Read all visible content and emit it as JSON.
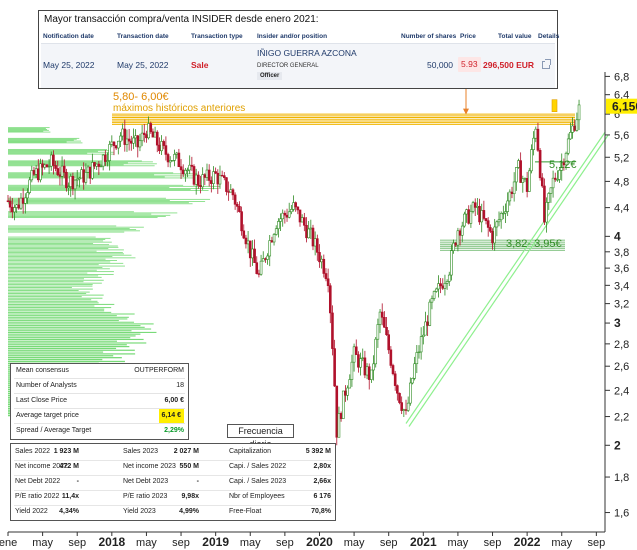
{
  "insider": {
    "title": "Mayor transacción compra/venta INSIDER desde enero 2021:",
    "headers": [
      "Notification date",
      "Transaction date",
      "Transaction type",
      "Insider and/or position",
      "Number of shares",
      "Price",
      "Total value",
      "Details"
    ],
    "notification_date": "May 25, 2022",
    "transaction_date": "May 25, 2022",
    "type": "Sale",
    "insider_name": "IÑIGO GUERRA AZCONA",
    "position": "DIRECTOR GENERAL",
    "role": "Officer",
    "shares": "50,000",
    "price": "5.93",
    "total": "296,500 EUR",
    "details_icon": "external-link-icon"
  },
  "annotations": {
    "resistance_range": "5,80- 6,00€",
    "resistance_note": "máximos históricos anteriores",
    "support_range": "3,82- 3,95€",
    "pivot": "5,12€",
    "last_price": "6,150"
  },
  "consensus": {
    "rows": [
      {
        "label": "Mean consensus",
        "value": "OUTPERFORM"
      },
      {
        "label": "Number of Analysts",
        "value": "18"
      },
      {
        "label": "Last Close Price",
        "value": "6,00 €"
      },
      {
        "label": "Average target price",
        "value": "6,14 €"
      },
      {
        "label": "Spread / Average Target",
        "value": "2,29%"
      }
    ]
  },
  "frequency_label": "Frecuencia diaria",
  "fundamentals": {
    "rows": [
      [
        [
          "Sales 2022",
          "1 923 M"
        ],
        [
          "Sales 2023",
          "2 027 M"
        ],
        [
          "Capitalization",
          "5 392 M"
        ]
      ],
      [
        [
          "Net income 2022",
          "472 M"
        ],
        [
          "Net income 2023",
          "550 M"
        ],
        [
          "Capi. / Sales 2022",
          "2,80x"
        ]
      ],
      [
        [
          "Net Debt 2022",
          "-"
        ],
        [
          "Net Debt 2023",
          "-"
        ],
        [
          "Capi. / Sales 2023",
          "2,66x"
        ]
      ],
      [
        [
          "P/E ratio 2022",
          "11,4x"
        ],
        [
          "P/E ratio 2023",
          "9,98x"
        ],
        [
          "Nbr of Employees",
          "6 176"
        ]
      ],
      [
        [
          "Yield 2022",
          "4,34%"
        ],
        [
          "Yield 2023",
          "4,99%"
        ],
        [
          "Free-Float",
          "70,8%"
        ]
      ]
    ]
  },
  "colors": {
    "up": "#2e8b22",
    "down": "#b0112b",
    "volume_profile": "#5fd35f",
    "resistance": "#f0b400",
    "trendline": "#8ef08e",
    "support": "#2e9a2e"
  },
  "chart_data": {
    "type": "candlestick",
    "y_scale": "log",
    "ylim": [
      1.5,
      6.9
    ],
    "y_ticks": [
      "1,6",
      "1,8",
      "2",
      "2,2",
      "2,4",
      "2,6",
      "2,8",
      "3",
      "3,2",
      "3,4",
      "3,6",
      "3,8",
      "4",
      "4,4",
      "4,8",
      "5,2",
      "5,6",
      "6",
      "6,4",
      "6,8"
    ],
    "y_ticks_bold": [
      "2",
      "3",
      "4"
    ],
    "y_tick_values": [
      1.6,
      1.8,
      2,
      2.2,
      2.4,
      2.6,
      2.8,
      3,
      3.2,
      3.4,
      3.6,
      3.8,
      4,
      4.4,
      4.8,
      5.2,
      5.6,
      6,
      6.4,
      6.8
    ],
    "x_range": [
      "2017-01",
      "2022-10"
    ],
    "x_ticks": [
      {
        "date": "2017-01",
        "label": "ene",
        "bold": false
      },
      {
        "date": "2017-05",
        "label": "may",
        "bold": false
      },
      {
        "date": "2017-09",
        "label": "sep",
        "bold": false
      },
      {
        "date": "2018-01",
        "label": "2018",
        "bold": true
      },
      {
        "date": "2018-05",
        "label": "may",
        "bold": false
      },
      {
        "date": "2018-09",
        "label": "sep",
        "bold": false
      },
      {
        "date": "2019-01",
        "label": "2019",
        "bold": true
      },
      {
        "date": "2019-05",
        "label": "may",
        "bold": false
      },
      {
        "date": "2019-09",
        "label": "sep",
        "bold": false
      },
      {
        "date": "2020-01",
        "label": "2020",
        "bold": true
      },
      {
        "date": "2020-05",
        "label": "may",
        "bold": false
      },
      {
        "date": "2020-09",
        "label": "sep",
        "bold": false
      },
      {
        "date": "2021-01",
        "label": "2021",
        "bold": true
      },
      {
        "date": "2021-05",
        "label": "may",
        "bold": false
      },
      {
        "date": "2021-09",
        "label": "sep",
        "bold": false
      },
      {
        "date": "2022-01",
        "label": "2022",
        "bold": true
      },
      {
        "date": "2022-05",
        "label": "may",
        "bold": false
      },
      {
        "date": "2022-09",
        "label": "sep",
        "bold": false
      }
    ],
    "close_keypoints": [
      [
        "2017-01",
        4.5
      ],
      [
        "2017-02",
        4.4
      ],
      [
        "2017-04",
        4.9
      ],
      [
        "2017-06",
        5.1
      ],
      [
        "2017-08",
        4.8
      ],
      [
        "2017-10",
        4.9
      ],
      [
        "2017-12",
        5.2
      ],
      [
        "2018-02",
        5.6
      ],
      [
        "2018-04",
        5.4
      ],
      [
        "2018-05",
        5.7
      ],
      [
        "2018-07",
        5.3
      ],
      [
        "2018-09",
        5.1
      ],
      [
        "2018-11",
        4.8
      ],
      [
        "2019-01",
        4.9
      ],
      [
        "2019-03",
        4.6
      ],
      [
        "2019-05",
        3.8
      ],
      [
        "2019-06",
        3.5
      ],
      [
        "2019-08",
        4.2
      ],
      [
        "2019-10",
        4.4
      ],
      [
        "2019-12",
        4.0
      ],
      [
        "2020-02",
        3.5
      ],
      [
        "2020-03",
        2.1
      ],
      [
        "2020-05",
        2.7
      ],
      [
        "2020-07",
        2.5
      ],
      [
        "2020-08",
        3.1
      ],
      [
        "2020-10",
        2.4
      ],
      [
        "2020-11",
        2.2
      ],
      [
        "2020-12",
        2.6
      ],
      [
        "2021-02",
        3.2
      ],
      [
        "2021-04",
        3.6
      ],
      [
        "2021-05",
        4.1
      ],
      [
        "2021-07",
        4.4
      ],
      [
        "2021-09",
        4.0
      ],
      [
        "2021-11",
        4.6
      ],
      [
        "2021-12",
        5.0
      ],
      [
        "2022-01",
        4.7
      ],
      [
        "2022-02",
        5.8
      ],
      [
        "2022-03",
        4.2
      ],
      [
        "2022-04",
        4.8
      ],
      [
        "2022-05",
        5.1
      ],
      [
        "2022-06",
        5.6
      ],
      [
        "2022-07",
        6.1
      ]
    ],
    "resistance_range": [
      5.8,
      6.0
    ],
    "support_range": [
      3.82,
      3.95
    ],
    "pivot": 5.12,
    "last_price": 6.15,
    "trendline": [
      [
        "2020-11",
        2.15
      ],
      [
        "2022-10",
        5.65
      ]
    ],
    "volume_profile": {
      "levels": [
        2.25,
        2.35,
        2.45,
        2.55,
        2.65,
        2.75,
        2.85,
        2.95,
        3.05,
        3.15,
        3.25,
        3.35,
        3.45,
        3.55,
        3.65,
        3.75,
        3.85,
        3.95,
        4.1,
        4.3,
        4.5,
        4.7,
        4.9,
        5.1,
        5.3,
        5.5,
        5.7
      ],
      "weights": [
        0.3,
        0.35,
        0.4,
        0.5,
        0.55,
        0.6,
        0.65,
        0.7,
        0.6,
        0.5,
        0.45,
        0.4,
        0.45,
        0.5,
        0.55,
        0.6,
        0.55,
        0.5,
        0.65,
        0.8,
        0.95,
        1.0,
        0.9,
        0.7,
        0.5,
        0.35,
        0.2
      ]
    }
  }
}
